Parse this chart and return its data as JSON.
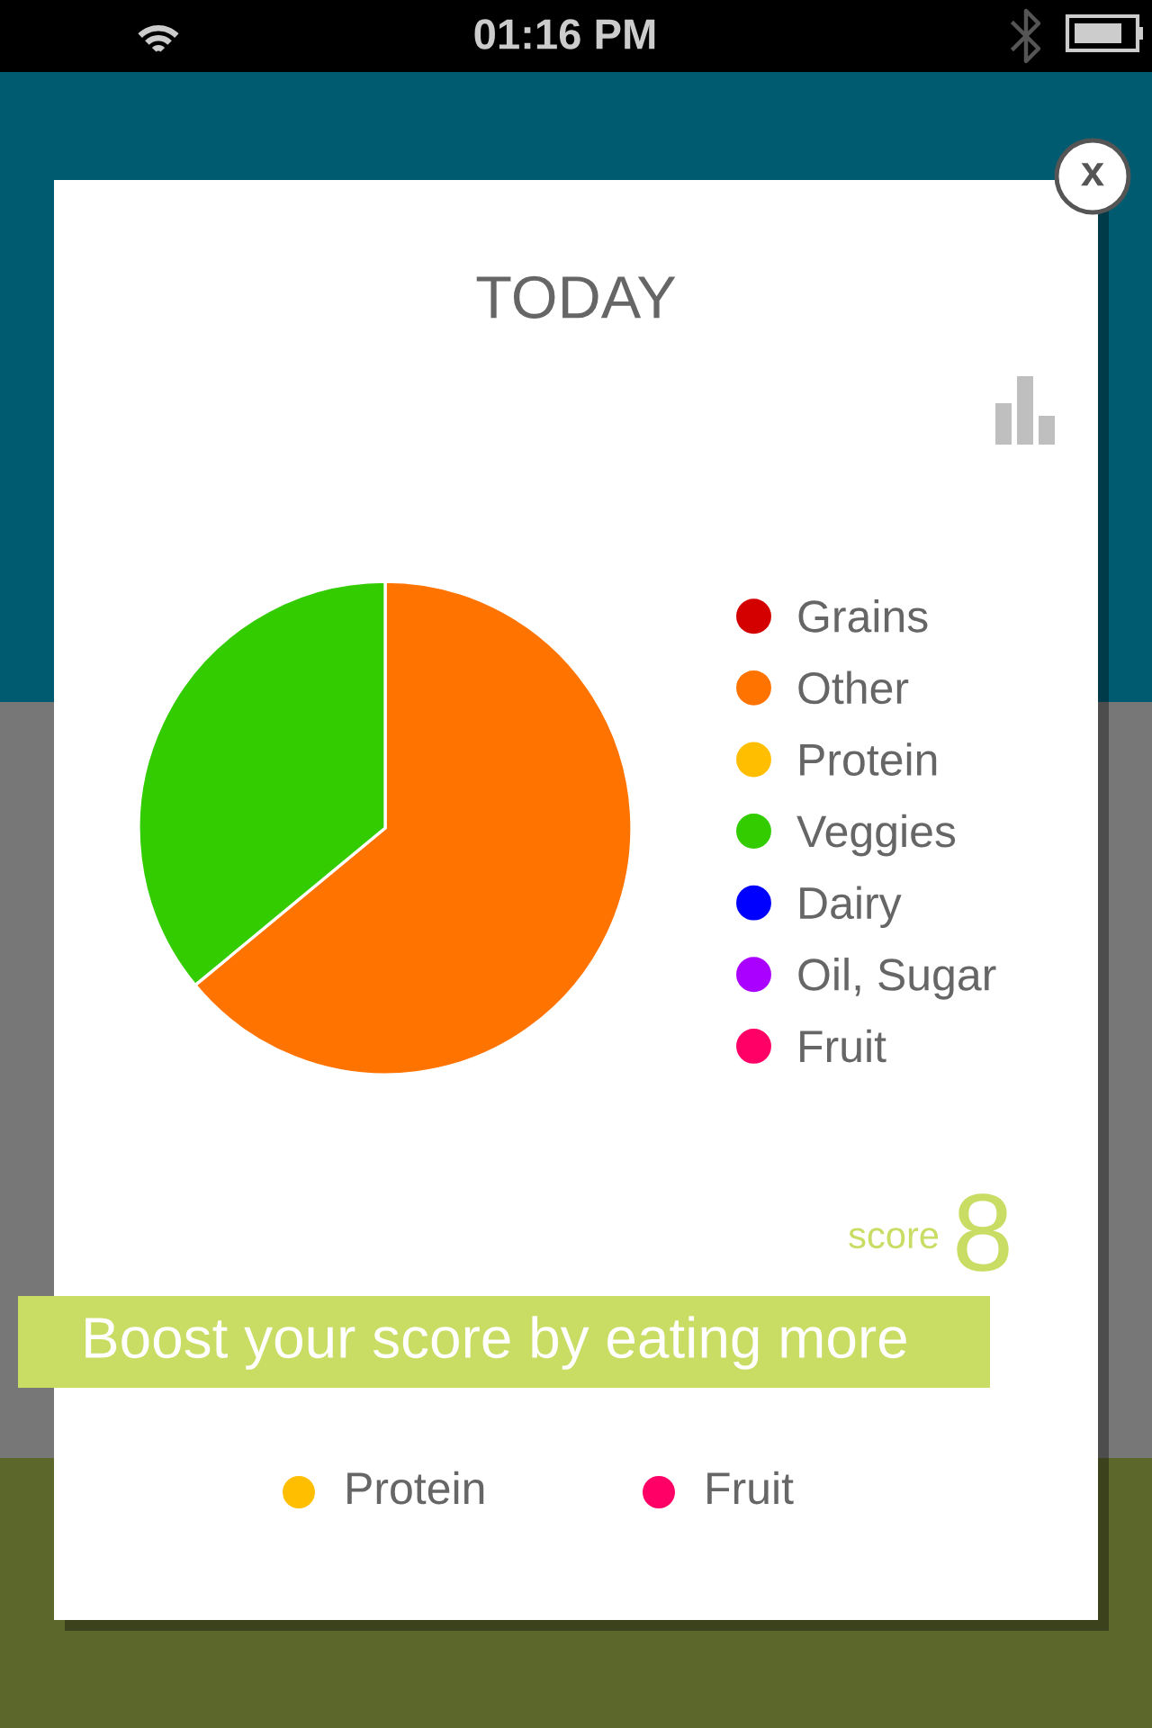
{
  "chart_data": {
    "type": "pie",
    "title": "TODAY",
    "categories": [
      "Grains",
      "Other",
      "Protein",
      "Veggies",
      "Dairy",
      "Oil, Sugar",
      "Fruit"
    ],
    "values": [
      0,
      64,
      0,
      36,
      0,
      0,
      0
    ],
    "colors": [
      "#d40000",
      "#ff7300",
      "#ffbf00",
      "#33cc00",
      "#0000ff",
      "#aa00ff",
      "#ff0066"
    ],
    "legend": "right",
    "annotations": [
      "01:16 PM",
      "x",
      "score",
      "8",
      "Boost your score by eating more",
      "Protein",
      "Fruit"
    ]
  }
}
